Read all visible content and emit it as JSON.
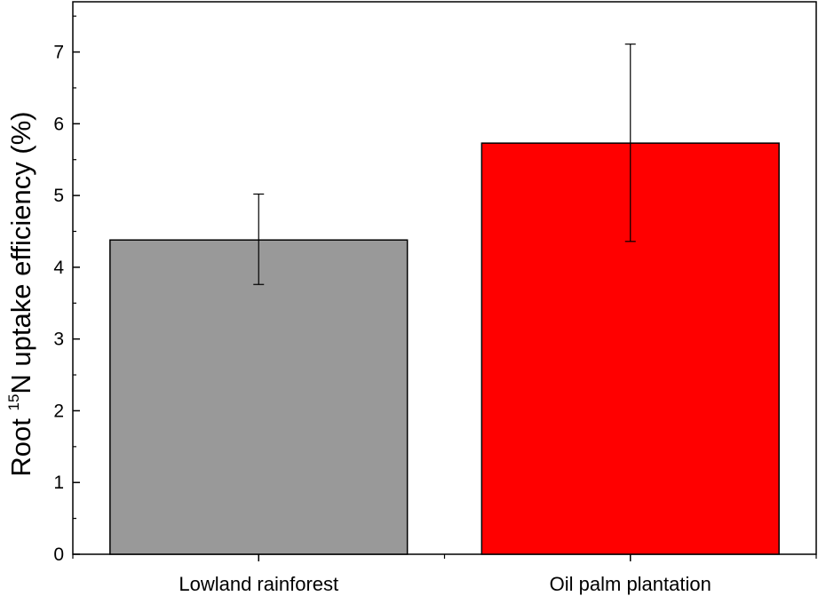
{
  "chart_data": {
    "type": "bar",
    "title": "",
    "xlabel": "",
    "ylabel": {
      "prefix": "Root ",
      "superscript": "15",
      "suffix": "N uptake efficiency (%)"
    },
    "categories": [
      "Lowland rainforest",
      "Oil palm plantation"
    ],
    "values": [
      4.38,
      5.73
    ],
    "error_upper": [
      5.02,
      7.11
    ],
    "error_lower": [
      3.76,
      4.36
    ],
    "bar_colors": [
      "#999999",
      "#ff0000"
    ],
    "ylim": [
      0,
      7.7
    ],
    "yticks": [
      0,
      1,
      2,
      3,
      4,
      5,
      6,
      7
    ],
    "grid": false,
    "legend": "none"
  }
}
